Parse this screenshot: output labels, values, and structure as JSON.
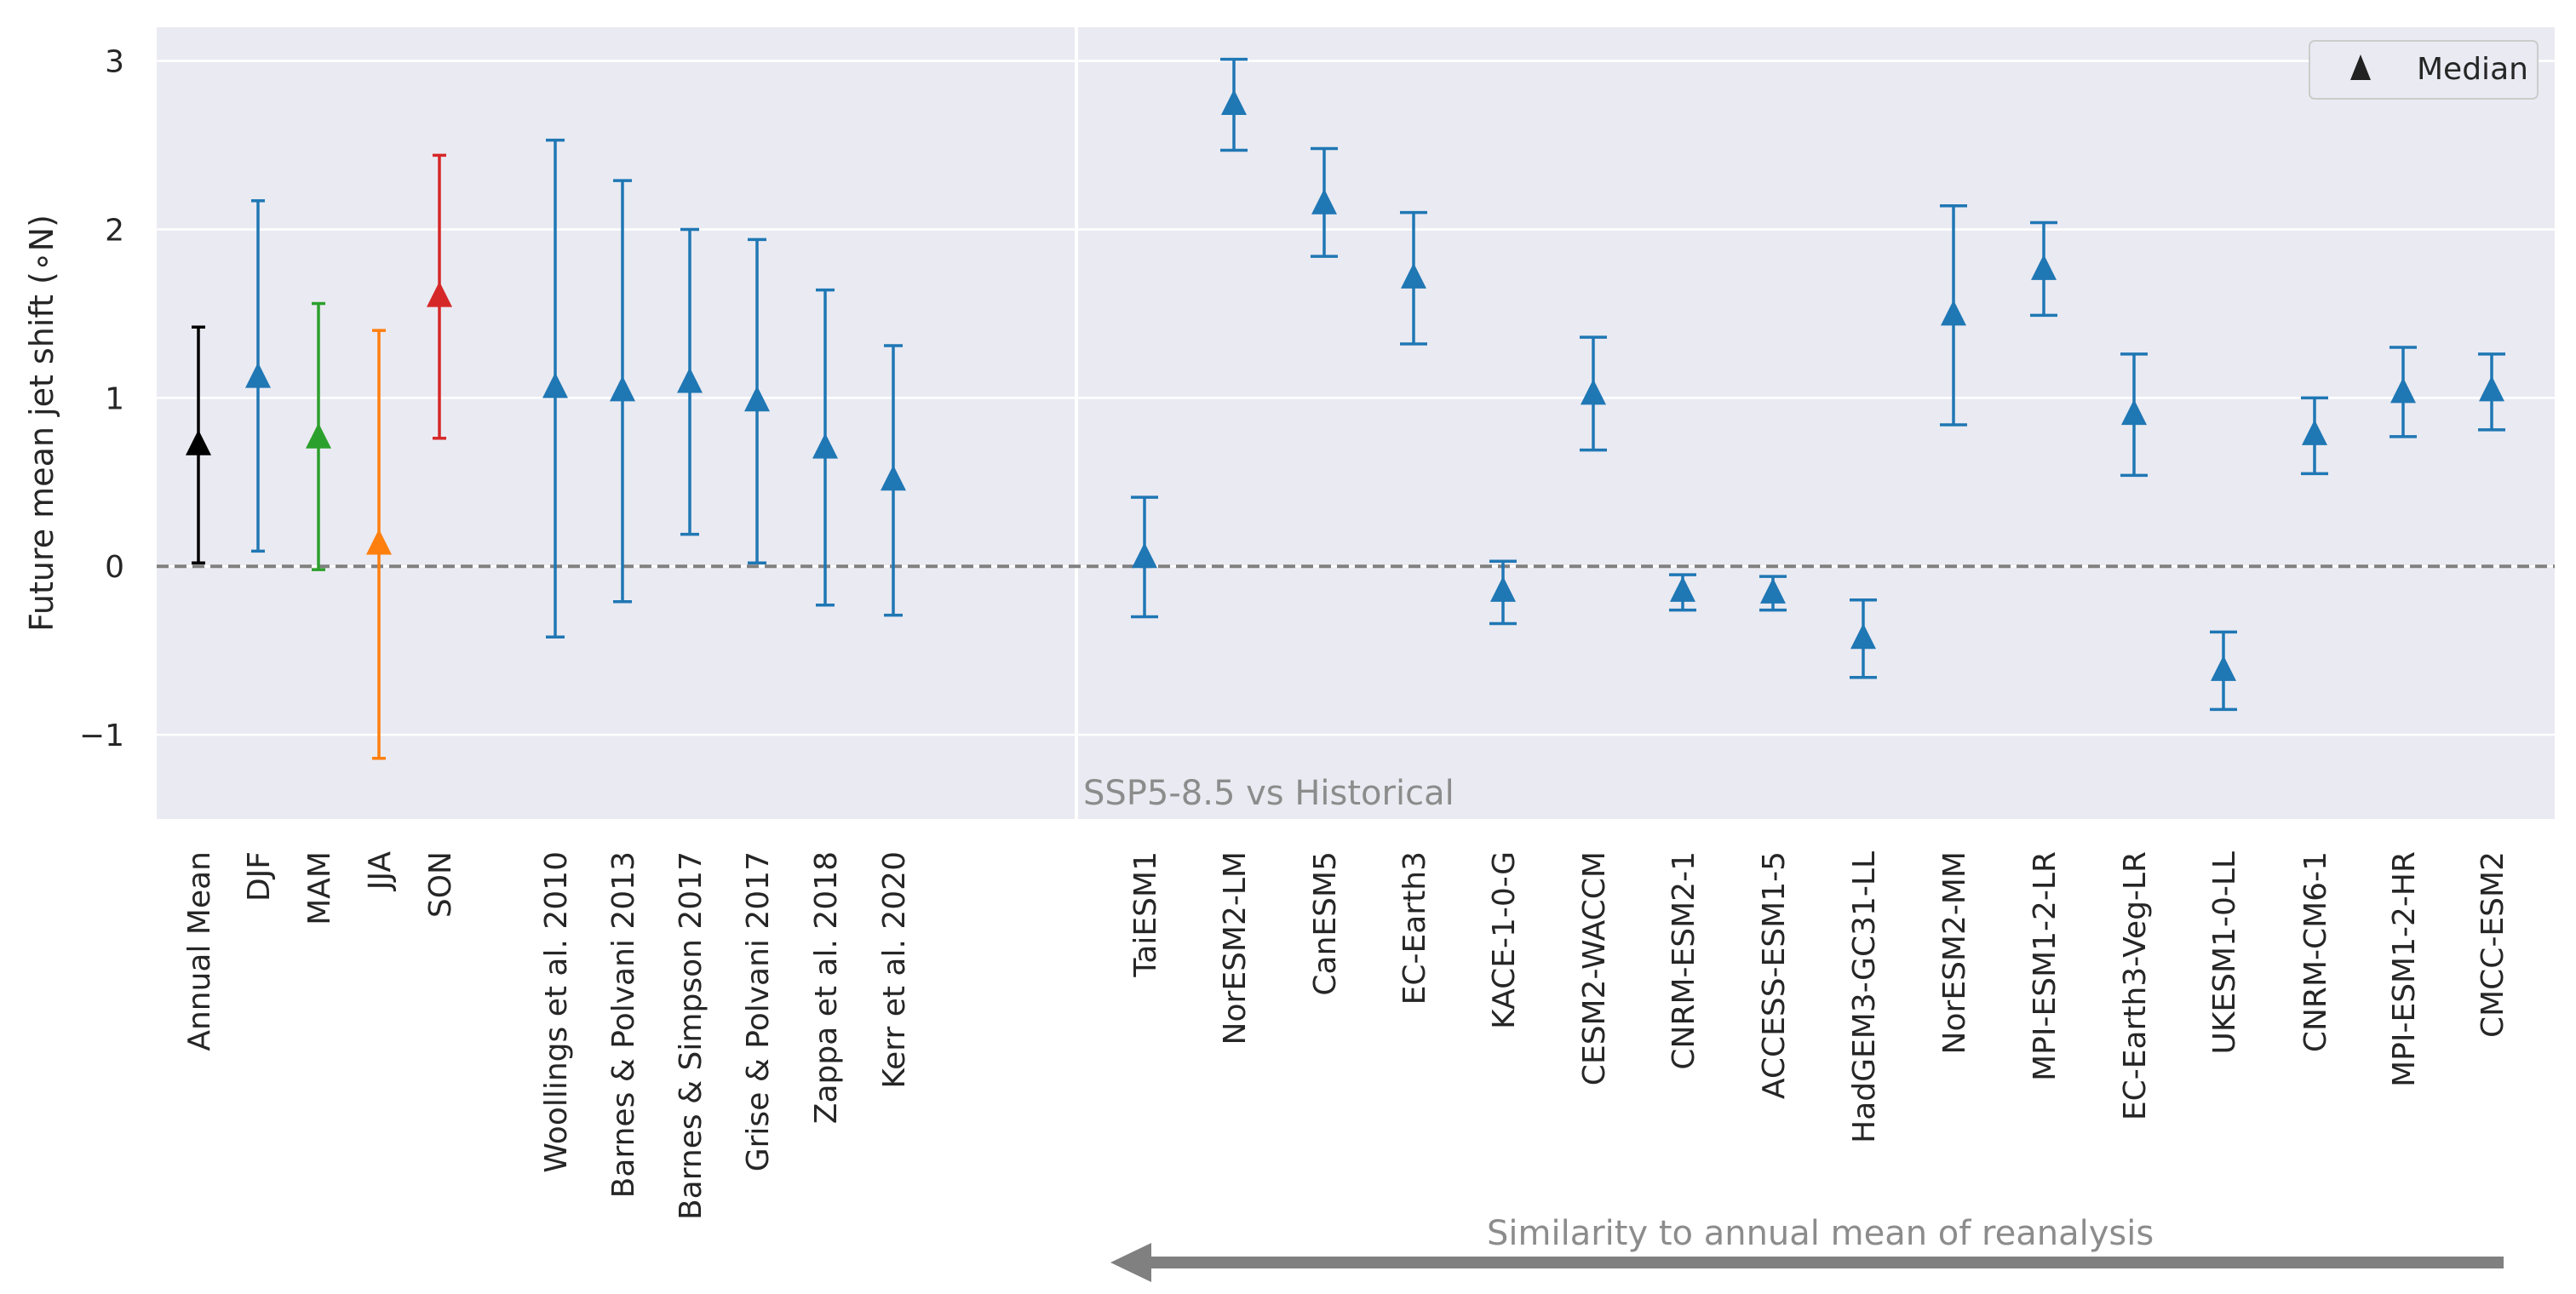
{
  "chart_data": {
    "type": "errorbar",
    "ylabel": "Future mean jet shift (∘N)",
    "ylim": [
      -1.5,
      3.2
    ],
    "yticks": [
      -1,
      0,
      1,
      2,
      3
    ],
    "grid": true,
    "zero_line": true,
    "annotation": "SSP5-8.5 vs Historical",
    "arrow_label": "Similarity to annual mean of reanalysis",
    "legend": {
      "label": "Median",
      "marker": "triangle",
      "placement": "top-right"
    },
    "points": [
      {
        "label": "Annual Mean",
        "median": 0.72,
        "low": 0.02,
        "high": 1.42,
        "color": "#000000"
      },
      {
        "label": "DJF",
        "median": 1.12,
        "low": 0.09,
        "high": 2.17,
        "color": "#1f77b4"
      },
      {
        "label": "MAM",
        "median": 0.76,
        "low": -0.02,
        "high": 1.56,
        "color": "#2ca02c"
      },
      {
        "label": "JJA",
        "median": 0.13,
        "low": -1.14,
        "high": 1.4,
        "color": "#ff7f0e"
      },
      {
        "label": "SON",
        "median": 1.6,
        "low": 0.76,
        "high": 2.44,
        "color": "#d62728"
      },
      {
        "label": "Woollings et al. 2010",
        "median": 1.06,
        "low": -0.42,
        "high": 2.53,
        "color": "#1f77b4"
      },
      {
        "label": "Barnes & Polvani 2013",
        "median": 1.04,
        "low": -0.21,
        "high": 2.29,
        "color": "#1f77b4"
      },
      {
        "label": "Barnes & Simpson 2017",
        "median": 1.09,
        "low": 0.19,
        "high": 2.0,
        "color": "#1f77b4"
      },
      {
        "label": "Grise & Polvani 2017",
        "median": 0.98,
        "low": 0.02,
        "high": 1.94,
        "color": "#1f77b4"
      },
      {
        "label": "Zappa et al. 2018",
        "median": 0.7,
        "low": -0.23,
        "high": 1.64,
        "color": "#1f77b4"
      },
      {
        "label": "Kerr et al. 2020",
        "median": 0.51,
        "low": -0.29,
        "high": 1.31,
        "color": "#1f77b4"
      },
      {
        "label": "TaiESM1",
        "median": 0.05,
        "low": -0.3,
        "high": 0.41,
        "color": "#1f77b4"
      },
      {
        "label": "NorESM2-LM",
        "median": 2.74,
        "low": 2.47,
        "high": 3.01,
        "color": "#1f77b4"
      },
      {
        "label": "CanESM5",
        "median": 2.15,
        "low": 1.84,
        "high": 2.48,
        "color": "#1f77b4"
      },
      {
        "label": "EC-Earth3",
        "median": 1.71,
        "low": 1.32,
        "high": 2.1,
        "color": "#1f77b4"
      },
      {
        "label": "KACE-1-0-G",
        "median": -0.15,
        "low": -0.34,
        "high": 0.03,
        "color": "#1f77b4"
      },
      {
        "label": "CESM2-WACCM",
        "median": 1.02,
        "low": 0.69,
        "high": 1.36,
        "color": "#1f77b4"
      },
      {
        "label": "CNRM-ESM2-1",
        "median": -0.15,
        "low": -0.26,
        "high": -0.05,
        "color": "#1f77b4"
      },
      {
        "label": "ACCESS-ESM1-5",
        "median": -0.16,
        "low": -0.26,
        "high": -0.06,
        "color": "#1f77b4"
      },
      {
        "label": "HadGEM3-GC31-LL",
        "median": -0.43,
        "low": -0.66,
        "high": -0.2,
        "color": "#1f77b4"
      },
      {
        "label": "NorESM2-MM",
        "median": 1.49,
        "low": 0.84,
        "high": 2.14,
        "color": "#1f77b4"
      },
      {
        "label": "MPI-ESM1-2-LR",
        "median": 1.76,
        "low": 1.49,
        "high": 2.04,
        "color": "#1f77b4"
      },
      {
        "label": "EC-Earth3-Veg-LR",
        "median": 0.9,
        "low": 0.54,
        "high": 1.26,
        "color": "#1f77b4"
      },
      {
        "label": "UKESM1-0-LL",
        "median": -0.62,
        "low": -0.85,
        "high": -0.39,
        "color": "#1f77b4"
      },
      {
        "label": "CNRM-CM6-1",
        "median": 0.78,
        "low": 0.55,
        "high": 1.0,
        "color": "#1f77b4"
      },
      {
        "label": "MPI-ESM1-2-HR",
        "median": 1.03,
        "low": 0.77,
        "high": 1.3,
        "color": "#1f77b4"
      },
      {
        "label": "CMCC-ESM2",
        "median": 1.04,
        "low": 0.81,
        "high": 1.26,
        "color": "#1f77b4"
      }
    ],
    "colors": {
      "plot_background": "#eaeaf2",
      "grid": "#ffffff",
      "zero_line": "#808080",
      "annotation_text": "#8c8c8c",
      "arrow": "#808080"
    }
  }
}
